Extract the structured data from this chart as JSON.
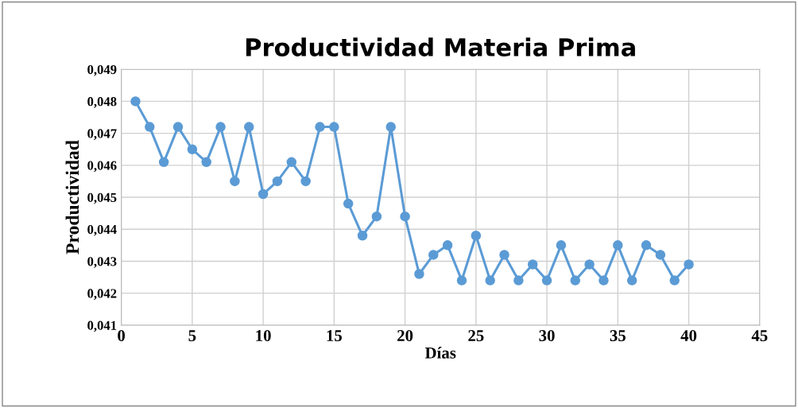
{
  "chart_data": {
    "type": "line",
    "title": "Productividad Materia Prima",
    "xlabel": "Días",
    "ylabel": "Productividad",
    "x": [
      1,
      2,
      3,
      4,
      5,
      6,
      7,
      8,
      9,
      10,
      11,
      12,
      13,
      14,
      15,
      16,
      17,
      18,
      19,
      20,
      21,
      22,
      23,
      24,
      25,
      26,
      27,
      28,
      29,
      30,
      31,
      32,
      33,
      34,
      35,
      36,
      37,
      38,
      39,
      40
    ],
    "series": [
      {
        "color": "#5b9bd5",
        "values": [
          0.048,
          0.0472,
          0.0461,
          0.0472,
          0.0465,
          0.0461,
          0.0472,
          0.0455,
          0.0472,
          0.0451,
          0.0455,
          0.0461,
          0.0455,
          0.0472,
          0.0472,
          0.0448,
          0.0438,
          0.0444,
          0.0472,
          0.0444,
          0.0426,
          0.0432,
          0.0435,
          0.0424,
          0.0438,
          0.0424,
          0.0432,
          0.0424,
          0.0429,
          0.0424,
          0.0435,
          0.0424,
          0.0429,
          0.0424,
          0.0435,
          0.0424,
          0.0435,
          0.0432,
          0.0424,
          0.0429
        ]
      }
    ],
    "xlim": [
      0,
      45
    ],
    "xticks": [
      0,
      5,
      10,
      15,
      20,
      25,
      30,
      35,
      40,
      45
    ],
    "ylim": [
      0.041,
      0.049
    ],
    "yticks": [
      {
        "value": 0.041,
        "label": "0,041"
      },
      {
        "value": 0.042,
        "label": "0,042"
      },
      {
        "value": 0.043,
        "label": "0,043"
      },
      {
        "value": 0.044,
        "label": "0,044"
      },
      {
        "value": 0.045,
        "label": "0,045"
      },
      {
        "value": 0.046,
        "label": "0,046"
      },
      {
        "value": 0.047,
        "label": "0,047"
      },
      {
        "value": 0.048,
        "label": "0,048"
      },
      {
        "value": 0.049,
        "label": "0,049"
      }
    ],
    "grid": true,
    "marker": "circle",
    "line_style": "solid",
    "legend": false
  }
}
